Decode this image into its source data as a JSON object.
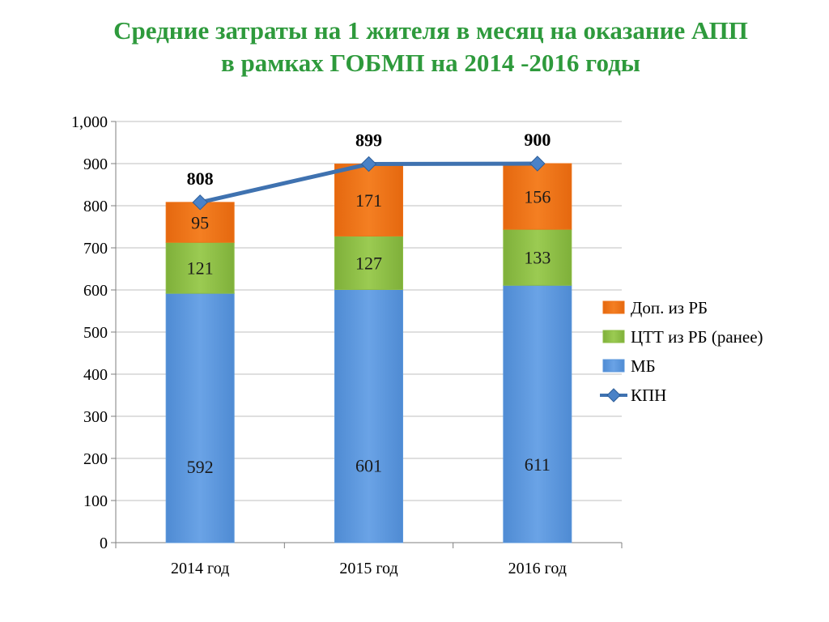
{
  "header": {
    "title_line1": "Средние затраты на 1 жителя в месяц на оказание АПП",
    "title_line2": "в рамках ГОБМП  на 2014 -2016 годы"
  },
  "colors": {
    "title": "#2e9a3c",
    "mb": "#5b97db",
    "ctt": "#8dbd45",
    "dop": "#ee7318",
    "kpn": "#3f72b0",
    "grid": "#bfbfbf"
  },
  "chart_data": {
    "type": "bar",
    "stacked": true,
    "categories": [
      "2014 год",
      "2015 год",
      "2016 год"
    ],
    "ylim": [
      0,
      1000
    ],
    "yticks": [
      0,
      100,
      200,
      300,
      400,
      500,
      600,
      700,
      800,
      900,
      1000
    ],
    "ytick_labels": [
      "0",
      "100",
      "200",
      "300",
      "400",
      "500",
      "600",
      "700",
      "800",
      "900",
      "1,000"
    ],
    "grid": true,
    "legend_position": "right",
    "series": [
      {
        "name": "МБ",
        "type": "bar",
        "color": "#5b97db",
        "values": [
          592,
          601,
          611
        ]
      },
      {
        "name": "ЦТТ из РБ (ранее)",
        "type": "bar",
        "color": "#8dbd45",
        "values": [
          121,
          127,
          133
        ]
      },
      {
        "name": "Доп. из РБ",
        "type": "bar",
        "color": "#ee7318",
        "values": [
          95,
          171,
          156
        ]
      },
      {
        "name": "КПН",
        "type": "line",
        "color": "#3f72b0",
        "values": [
          808,
          899,
          900
        ]
      }
    ],
    "legend_order": [
      "Доп. из РБ",
      "ЦТТ из РБ (ранее)",
      "МБ",
      "КПН"
    ]
  }
}
